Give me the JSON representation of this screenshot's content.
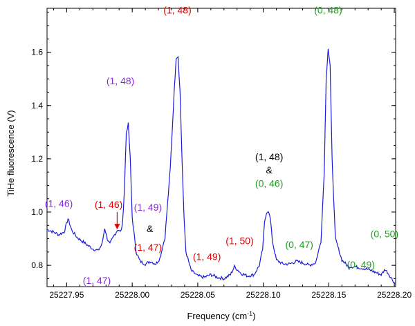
{
  "chart_data": {
    "type": "line",
    "title": "",
    "xlabel": "Frequency (cm",
    "xlabel_sup": "-1",
    "xlabel_end": ")",
    "ylabel": "TiHe fluorescence (V)",
    "xlim": [
      25227.935,
      25228.201
    ],
    "ylim": [
      0.72,
      1.765
    ],
    "grid": false,
    "x_ticks": [
      25227.95,
      25228.0,
      25228.05,
      25228.1,
      25228.15,
      25228.2
    ],
    "x_tick_labels": [
      "25227.95",
      "25228.00",
      "25228.05",
      "25228.10",
      "25228.15",
      "25228.20"
    ],
    "y_ticks": [
      0.8,
      1.0,
      1.2,
      1.4,
      1.6
    ],
    "y_tick_labels": [
      "0.8",
      "1.0",
      "1.2",
      "1.4",
      "1.6"
    ],
    "series": [
      {
        "color": "#1a1adf",
        "x": [
          25227.935,
          25227.94,
          25227.944,
          25227.948,
          25227.951,
          25227.954,
          25227.958,
          25227.962,
          25227.966,
          25227.97,
          25227.974,
          25227.977,
          25227.979,
          25227.981,
          25227.983,
          25227.986,
          25227.989,
          25227.991,
          25227.9925,
          25227.994,
          25227.9955,
          25227.997,
          25227.9985,
          25228.0,
          25228.003,
          25228.006,
          25228.01,
          25228.014,
          25228.016,
          25228.018,
          25228.021,
          25228.025,
          25228.029,
          25228.032,
          25228.0335,
          25228.035,
          25228.0365,
          25228.038,
          25228.0395,
          25228.041,
          25228.045,
          25228.05,
          25228.055,
          25228.06,
          25228.065,
          25228.07,
          25228.075,
          25228.078,
          25228.08,
          25228.083,
          25228.088,
          25228.093,
          25228.097,
          25228.0995,
          25228.101,
          25228.1025,
          25228.104,
          25228.1055,
          25228.107,
          25228.11,
          25228.115,
          25228.12,
          25228.125,
          25228.13,
          25228.135,
          25228.14,
          25228.144,
          25228.1465,
          25228.148,
          25228.1495,
          25228.151,
          25228.1525,
          25228.155,
          25228.16,
          25228.165,
          25228.17,
          25228.175,
          25228.18,
          25228.185,
          25228.19,
          25228.193,
          25228.196,
          25228.2,
          25228.201
        ],
        "y": [
          0.935,
          0.925,
          0.915,
          0.925,
          0.975,
          0.93,
          0.905,
          0.89,
          0.875,
          0.862,
          0.855,
          0.88,
          0.94,
          0.9,
          0.88,
          0.91,
          0.935,
          0.925,
          0.95,
          1.08,
          1.3,
          1.33,
          1.2,
          0.98,
          0.85,
          0.815,
          0.805,
          0.815,
          0.81,
          0.805,
          0.825,
          0.905,
          1.16,
          1.45,
          1.58,
          1.585,
          1.45,
          1.2,
          0.98,
          0.85,
          0.78,
          0.76,
          0.755,
          0.765,
          0.755,
          0.75,
          0.765,
          0.795,
          0.785,
          0.77,
          0.76,
          0.765,
          0.8,
          0.86,
          0.96,
          1.0,
          1.005,
          0.97,
          0.89,
          0.82,
          0.805,
          0.805,
          0.815,
          0.81,
          0.8,
          0.81,
          0.89,
          1.15,
          1.5,
          1.615,
          1.55,
          1.2,
          0.9,
          0.82,
          0.795,
          0.795,
          0.79,
          0.785,
          0.775,
          0.765,
          0.785,
          0.765,
          0.735,
          0.73
        ]
      }
    ],
    "annotations": [
      {
        "text": "(1, 46)",
        "x": 25227.944,
        "y": 1.02,
        "color": "#8a2be2"
      },
      {
        "text": "(1, 47)",
        "x": 25227.973,
        "y": 0.73,
        "color": "#8a2be2"
      },
      {
        "text": "(1, 46)",
        "x": 25227.982,
        "y": 1.015,
        "color": "#e00000"
      },
      {
        "text": "(1, 48)",
        "x": 25227.991,
        "y": 1.48,
        "color": "#8a2be2"
      },
      {
        "text": "(1, 49)",
        "x": 25228.012,
        "y": 1.005,
        "color": "#8a2be2"
      },
      {
        "text": "&",
        "x": 25228.0135,
        "y": 0.925,
        "color": "#000000"
      },
      {
        "text": "(1, 47)",
        "x": 25228.012,
        "y": 0.855,
        "color": "#e00000"
      },
      {
        "text": "(1, 48)",
        "x": 25228.0345,
        "y": 1.745,
        "color": "#e00000"
      },
      {
        "text": "(1, 49)",
        "x": 25228.057,
        "y": 0.82,
        "color": "#e00000"
      },
      {
        "text": "(1, 50)",
        "x": 25228.082,
        "y": 0.88,
        "color": "#e00000"
      },
      {
        "text": "(1, 48)",
        "x": 25228.1045,
        "y": 1.195,
        "color": "#000000"
      },
      {
        "text": "&",
        "x": 25228.1045,
        "y": 1.145,
        "color": "#000000"
      },
      {
        "text": "(0, 46)",
        "x": 25228.1045,
        "y": 1.095,
        "color": "#1e9e1e"
      },
      {
        "text": "(0, 47)",
        "x": 25228.1275,
        "y": 0.865,
        "color": "#1e9e1e"
      },
      {
        "text": "(0, 48)",
        "x": 25228.1495,
        "y": 1.745,
        "color": "#1e9e1e"
      },
      {
        "text": "(0, 49)",
        "x": 25228.1745,
        "y": 0.79,
        "color": "#1e9e1e"
      },
      {
        "text": "(0, 50)",
        "x": 25228.1925,
        "y": 0.905,
        "color": "#1e9e1e"
      }
    ],
    "arrow": {
      "color": "#e00000",
      "from": [
        25227.9885,
        1.0
      ],
      "to": [
        25227.9885,
        0.935
      ]
    }
  }
}
